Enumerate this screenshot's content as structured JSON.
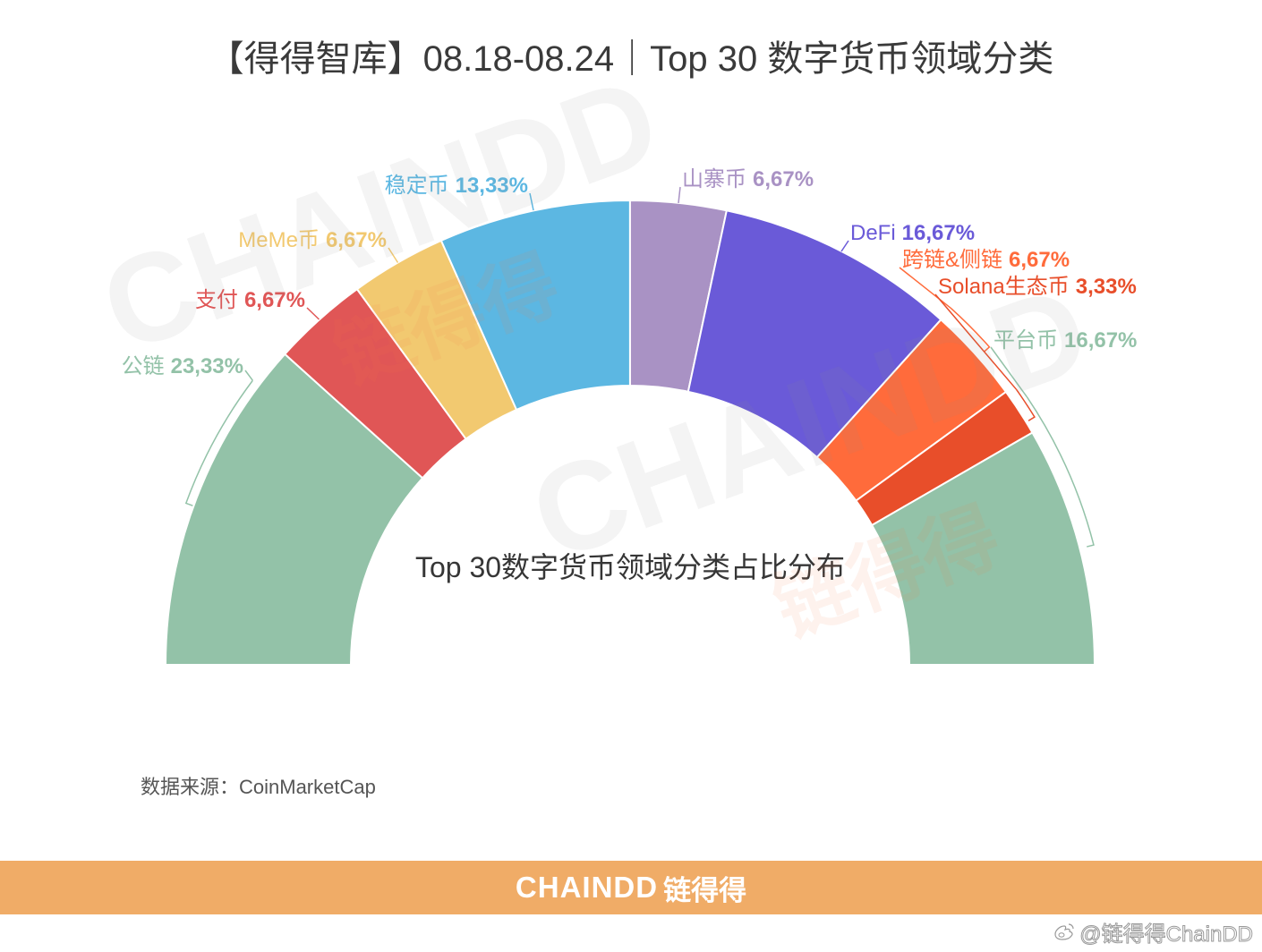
{
  "title": "【得得智库】08.18-08.24｜Top 30 数字货币领域分类",
  "source": "数据来源：CoinMarketCap",
  "footer": {
    "brand_en": "CHAINDD",
    "brand_cn": "链得得",
    "background": "#F0AC67"
  },
  "social_watermark": {
    "icon": "weibo-icon",
    "text": "@链得得ChainDD"
  },
  "watermark": {
    "en": "CHAINDD",
    "cn": "链得得"
  },
  "chart_data": {
    "type": "pie",
    "donut": true,
    "semicircle": true,
    "title": "Top 30数字货币领域分类占比分布",
    "categories": [
      "公链",
      "支付",
      "MeMe币",
      "稳定币",
      "山寨币",
      "DeFi",
      "跨链&侧链",
      "Solana生态币",
      "平台币"
    ],
    "values": [
      23.33,
      6.67,
      6.67,
      13.33,
      6.67,
      16.67,
      6.67,
      3.33,
      16.67
    ],
    "labels": [
      "23,33%",
      "6,67%",
      "6,67%",
      "13,33%",
      "6,67%",
      "16,67%",
      "6,67%",
      "3,33%",
      "16,67%"
    ],
    "colors": [
      "#93C2A8",
      "#E05656",
      "#F2C970",
      "#5CB7E2",
      "#A992C4",
      "#6A5AD8",
      "#FF6B3B",
      "#E84E2A",
      "#93C2A8"
    ]
  }
}
